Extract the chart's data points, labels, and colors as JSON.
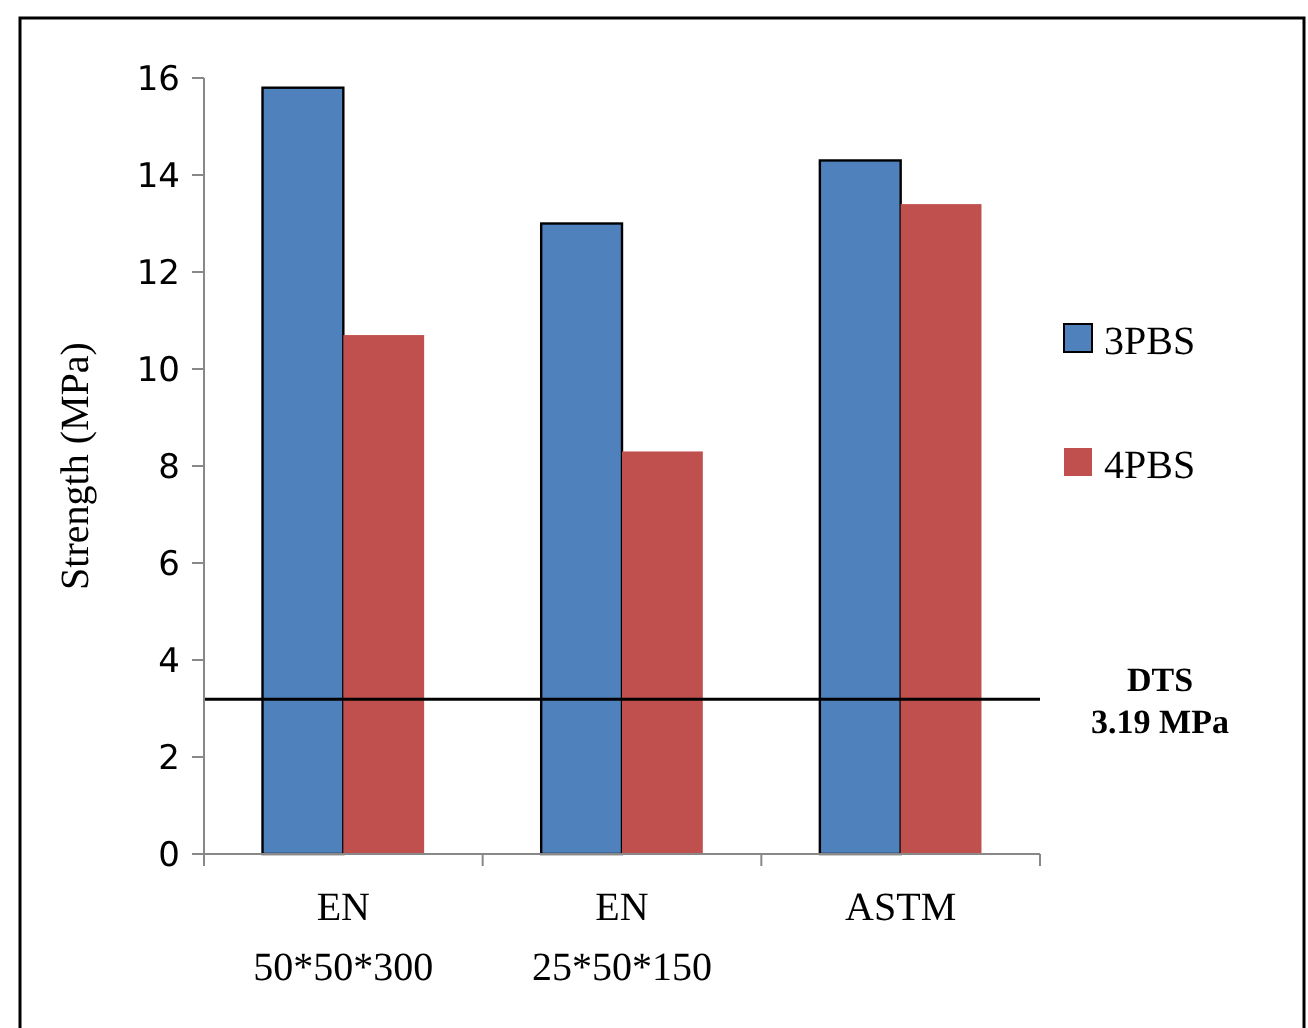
{
  "chart_data": {
    "type": "bar",
    "ylabel": "Strength (MPa)",
    "categories": [
      "EN\n50*50*300",
      "EN\n25*50*150",
      "ASTM"
    ],
    "series": [
      {
        "name": "3PBS",
        "color": "#4f81bd",
        "values": [
          15.8,
          13.0,
          14.3
        ]
      },
      {
        "name": "4PBS",
        "color": "#c0504d",
        "values": [
          10.7,
          8.3,
          13.4
        ]
      }
    ],
    "ylim": [
      0,
      16
    ],
    "yticks": [
      0,
      2,
      4,
      6,
      8,
      10,
      12,
      14,
      16
    ],
    "legend": "right",
    "ref_lines": [
      {
        "axis": "y",
        "value": 3.19,
        "label": "DTS\n3.19 MPa",
        "color": "#000000"
      }
    ]
  }
}
